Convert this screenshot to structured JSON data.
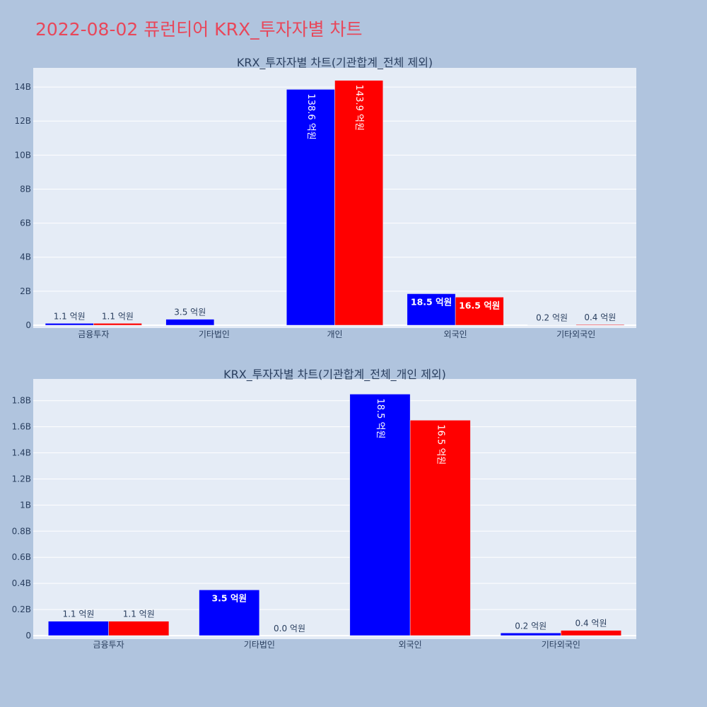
{
  "page": {
    "title": "2022-08-02 퓨런티어 KRX_투자자별 차트",
    "title_color": "#e8475a",
    "background": "#b0c4de",
    "plot_background": "#e5ecf6"
  },
  "chart_data": [
    {
      "type": "bar",
      "title": "KRX_투자자별 차트(기관합계_전체 제외)",
      "categories": [
        "금융투자",
        "기타법인",
        "개인",
        "외국인",
        "기타외국인"
      ],
      "ylim": [
        0,
        15000000000
      ],
      "yticks": [
        {
          "value": 0,
          "label": "0"
        },
        {
          "value": 2000000000,
          "label": "2B"
        },
        {
          "value": 4000000000,
          "label": "4B"
        },
        {
          "value": 6000000000,
          "label": "6B"
        },
        {
          "value": 8000000000,
          "label": "8B"
        },
        {
          "value": 10000000000,
          "label": "10B"
        },
        {
          "value": 12000000000,
          "label": "12B"
        },
        {
          "value": 14000000000,
          "label": "14B"
        }
      ],
      "grid": true,
      "series": [
        {
          "color": "#0000ff",
          "values": [
            110000000,
            350000000,
            13860000000,
            1850000000,
            20000000
          ],
          "labels": [
            "1.1 억원",
            "3.5 억원",
            "138.6 억원",
            "18.5 억원",
            "0.2 억원"
          ]
        },
        {
          "color": "#ff0000",
          "values": [
            110000000,
            0,
            14390000000,
            1650000000,
            40000000
          ],
          "labels": [
            "1.1 억원",
            "",
            "143.9 억원",
            "16.5 억원",
            "0.4 억원"
          ]
        }
      ]
    },
    {
      "type": "bar",
      "title": "KRX_투자자별 차트(기관합계_전체_개인 제외)",
      "categories": [
        "금융투자",
        "기타법인",
        "외국인",
        "기타외국인"
      ],
      "ylim": [
        0,
        1950000000
      ],
      "yticks": [
        {
          "value": 0,
          "label": "0"
        },
        {
          "value": 200000000,
          "label": "0.2B"
        },
        {
          "value": 400000000,
          "label": "0.4B"
        },
        {
          "value": 600000000,
          "label": "0.6B"
        },
        {
          "value": 800000000,
          "label": "0.8B"
        },
        {
          "value": 1000000000,
          "label": "1B"
        },
        {
          "value": 1200000000,
          "label": "1.2B"
        },
        {
          "value": 1400000000,
          "label": "1.4B"
        },
        {
          "value": 1600000000,
          "label": "1.6B"
        },
        {
          "value": 1800000000,
          "label": "1.8B"
        }
      ],
      "grid": true,
      "series": [
        {
          "color": "#0000ff",
          "values": [
            110000000,
            350000000,
            1850000000,
            20000000
          ],
          "labels": [
            "1.1 억원",
            "3.5 억원",
            "18.5 억원",
            "0.2 억원"
          ]
        },
        {
          "color": "#ff0000",
          "values": [
            110000000,
            0,
            1650000000,
            40000000
          ],
          "labels": [
            "1.1 억원",
            "0.0 억원",
            "16.5 억원",
            "0.4 억원"
          ]
        }
      ]
    }
  ]
}
